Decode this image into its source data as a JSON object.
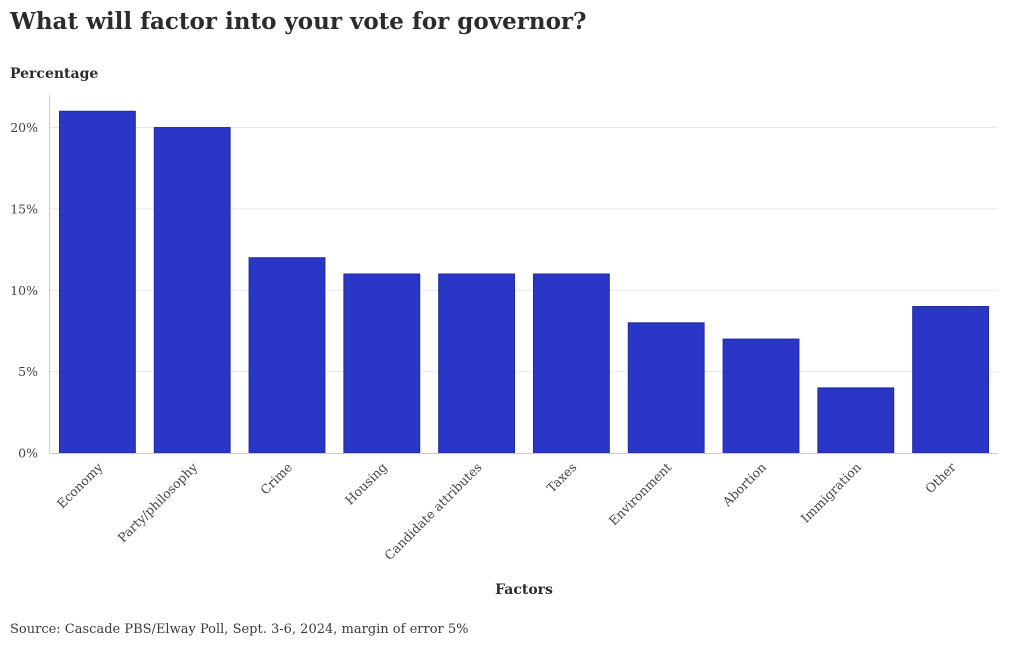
{
  "colors": {
    "bar": "#2936c6",
    "grid": "#e8e8e8",
    "axis": "#cccccc",
    "text": "#2b2b2b",
    "tick": "#444444"
  },
  "source": "Source: Cascade PBS/Elway Poll, Sept. 3-6, 2024, margin of error 5%",
  "chart_data": {
    "type": "bar",
    "title": "What will factor into your vote for governor?",
    "ylabel": "Percentage",
    "xlabel": "Factors",
    "categories": [
      "Economy",
      "Party/philosophy",
      "Crime",
      "Housing",
      "Candidate attributes",
      "Taxes",
      "Environment",
      "Abortion",
      "Immigration",
      "Other"
    ],
    "values": [
      21,
      20,
      12,
      11,
      11,
      11,
      8,
      7,
      4,
      9
    ],
    "ylim": [
      0,
      22
    ],
    "yticks": [
      0,
      5,
      10,
      15,
      20
    ],
    "ytick_labels": [
      "0%",
      "5%",
      "10%",
      "15%",
      "20%"
    ],
    "grid": true,
    "legend": "none"
  }
}
